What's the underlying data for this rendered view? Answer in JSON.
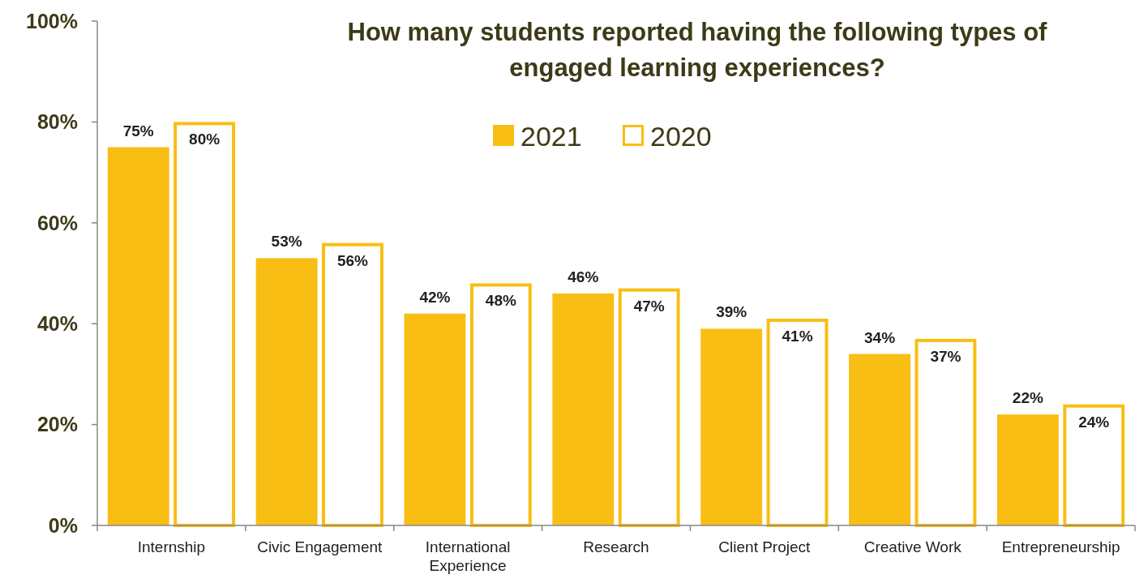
{
  "chart_data": {
    "type": "bar",
    "title": "How many students reported having the following types of engaged learning experiences?",
    "categories": [
      "Internship",
      "Civic Engagement",
      "International Experience",
      "Research",
      "Client Project",
      "Creative Work",
      "Entrepreneurship"
    ],
    "series": [
      {
        "name": "2021",
        "color": "#f9be14",
        "values": [
          75,
          53,
          42,
          46,
          39,
          34,
          22
        ],
        "value_labels": [
          "75%",
          "53%",
          "42%",
          "46%",
          "39%",
          "34%",
          "22%"
        ]
      },
      {
        "name": "2020",
        "color": "#f9be14",
        "values": [
          80,
          56,
          48,
          47,
          41,
          37,
          24
        ],
        "value_labels": [
          "80%",
          "56%",
          "48%",
          "47%",
          "41%",
          "37%",
          "24%"
        ]
      }
    ],
    "ylim": [
      0,
      100
    ],
    "yticks": [
      {
        "value": 0,
        "label": "0%"
      },
      {
        "value": 20,
        "label": "20%"
      },
      {
        "value": 40,
        "label": "40%"
      },
      {
        "value": 60,
        "label": "60%"
      },
      {
        "value": 80,
        "label": "80%"
      },
      {
        "value": 100,
        "label": "100%"
      }
    ],
    "grid": false,
    "legend": "top"
  }
}
